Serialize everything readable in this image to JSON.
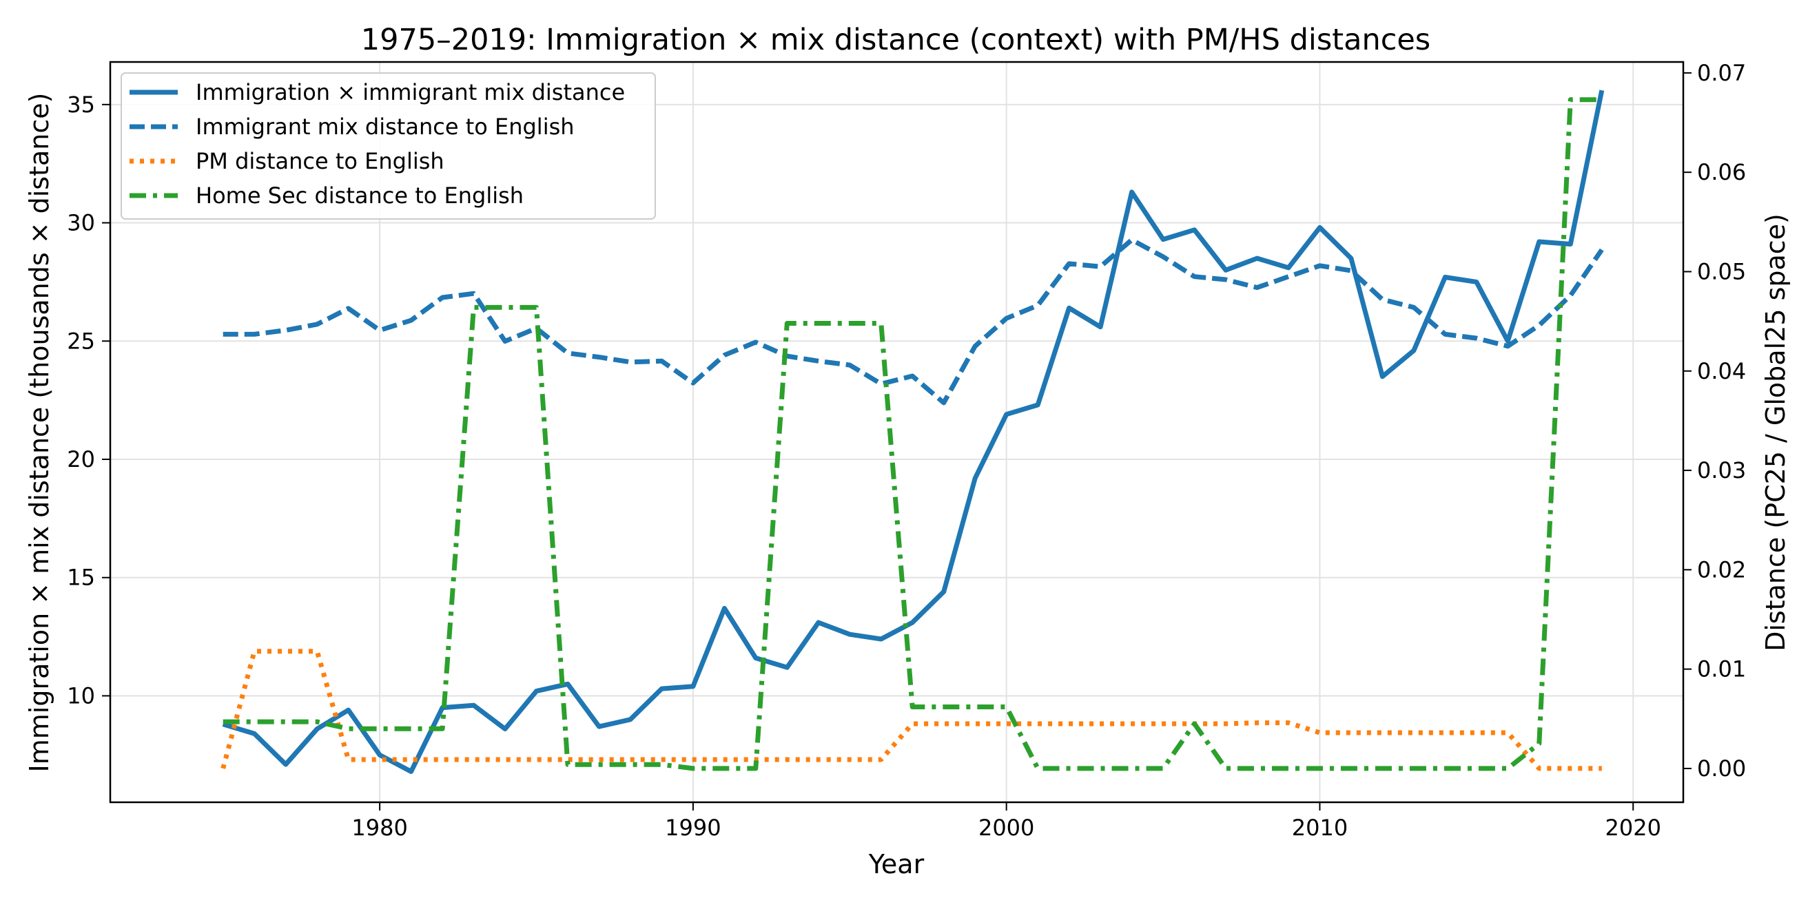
{
  "chart_data": {
    "type": "line",
    "title": "1975–2019: Immigration × mix distance (context) with PM/HS distances",
    "xlabel": "Year",
    "ylabel_left": "Immigration × mix distance (thousands × distance)",
    "ylabel_right": "Distance (PC25 / Global25 space)",
    "xlim": [
      1971.4,
      2021.6
    ],
    "ylim_left": [
      5.5,
      36.8
    ],
    "ylim_right": [
      -0.0034,
      0.0711
    ],
    "xticks": [
      1980,
      1990,
      2000,
      2010,
      2020
    ],
    "yticks_left": [
      10,
      15,
      20,
      25,
      30,
      35
    ],
    "yticks_right": [
      0.0,
      0.01,
      0.02,
      0.03,
      0.04,
      0.05,
      0.06,
      0.07
    ],
    "yticks_right_labels": [
      "0.00",
      "0.01",
      "0.02",
      "0.03",
      "0.04",
      "0.05",
      "0.06",
      "0.07"
    ],
    "grid": true,
    "legend_position": "upper-left",
    "x": [
      1975,
      1976,
      1977,
      1978,
      1979,
      1980,
      1981,
      1982,
      1983,
      1984,
      1985,
      1986,
      1987,
      1988,
      1989,
      1990,
      1991,
      1992,
      1993,
      1994,
      1995,
      1996,
      1997,
      1998,
      1999,
      2000,
      2001,
      2002,
      2003,
      2004,
      2005,
      2006,
      2007,
      2008,
      2009,
      2010,
      2011,
      2012,
      2013,
      2014,
      2015,
      2016,
      2017,
      2018,
      2019
    ],
    "series": [
      {
        "name": "Immigration × immigrant mix distance",
        "axis": "left",
        "style": "solid",
        "color": "#1f77b4",
        "values": [
          8.8,
          8.4,
          7.1,
          8.6,
          9.4,
          7.5,
          6.8,
          9.5,
          9.6,
          8.6,
          10.2,
          10.5,
          8.7,
          9.0,
          10.3,
          10.4,
          13.7,
          11.6,
          11.2,
          13.1,
          12.6,
          12.4,
          13.1,
          14.4,
          19.2,
          21.9,
          22.3,
          26.4,
          25.6,
          31.3,
          29.3,
          29.7,
          28.0,
          28.5,
          28.1,
          29.8,
          28.5,
          23.5,
          24.6,
          27.7,
          27.5,
          25.0,
          29.2,
          29.1,
          35.6
        ]
      },
      {
        "name": "Immigrant mix distance to English",
        "axis": "right",
        "style": "dashed",
        "color": "#1f77b4",
        "values": [
          0.0437,
          0.0437,
          0.0441,
          0.0447,
          0.0463,
          0.0441,
          0.0451,
          0.0474,
          0.0478,
          0.043,
          0.0443,
          0.0418,
          0.0414,
          0.0409,
          0.041,
          0.0388,
          0.0416,
          0.0429,
          0.0415,
          0.041,
          0.0406,
          0.0387,
          0.0395,
          0.0368,
          0.0425,
          0.0453,
          0.0466,
          0.0508,
          0.0505,
          0.0532,
          0.0515,
          0.0495,
          0.0492,
          0.0484,
          0.0495,
          0.0506,
          0.0501,
          0.0472,
          0.0464,
          0.0437,
          0.0433,
          0.0425,
          0.0446,
          0.0476,
          0.0522
        ]
      },
      {
        "name": "PM distance to English",
        "axis": "right",
        "style": "dotted",
        "color": "#ff7f0e",
        "values": [
          0.0,
          0.0118,
          0.0118,
          0.0118,
          0.0009,
          0.0009,
          0.0009,
          0.0009,
          0.0009,
          0.0009,
          0.0009,
          0.0009,
          0.0009,
          0.0009,
          0.0009,
          0.0009,
          0.0009,
          0.0009,
          0.0009,
          0.0009,
          0.0009,
          0.0009,
          0.0045,
          0.0045,
          0.0045,
          0.0045,
          0.0045,
          0.0045,
          0.0045,
          0.0045,
          0.0045,
          0.0045,
          0.0045,
          0.0046,
          0.0046,
          0.0036,
          0.0036,
          0.0036,
          0.0036,
          0.0036,
          0.0036,
          0.0036,
          0.0,
          0.0,
          0.0
        ]
      },
      {
        "name": "Home Sec distance to English",
        "axis": "right",
        "style": "dashdot",
        "color": "#2ca02c",
        "values": [
          0.0047,
          0.0047,
          0.0047,
          0.0047,
          0.004,
          0.004,
          0.004,
          0.004,
          0.0464,
          0.0464,
          0.0464,
          0.0004,
          0.0004,
          0.0004,
          0.0004,
          0.0,
          0.0,
          0.0,
          0.0448,
          0.0448,
          0.0448,
          0.0448,
          0.0062,
          0.0062,
          0.0062,
          0.0062,
          0.0,
          0.0,
          0.0,
          0.0,
          0.0,
          0.0045,
          0.0,
          0.0,
          0.0,
          0.0,
          0.0,
          0.0,
          0.0,
          0.0,
          0.0,
          0.0,
          0.0025,
          0.0673,
          0.0673
        ]
      }
    ]
  }
}
